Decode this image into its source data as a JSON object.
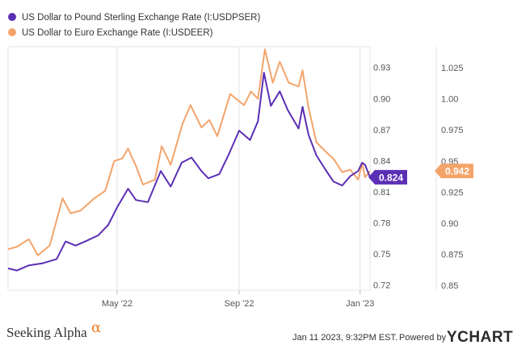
{
  "chart_data": {
    "type": "line",
    "title": "",
    "xlabel": "",
    "x_tick_labels": [
      "May '22",
      "Sep '22",
      "Jan '23"
    ],
    "x_tick_dates": [
      "2022-05-01",
      "2022-09-01",
      "2023-01-01"
    ],
    "x_range": [
      "2022-01-11",
      "2023-01-11"
    ],
    "y_left": {
      "ticks": [
        0.72,
        0.75,
        0.78,
        0.81,
        0.84,
        0.87,
        0.9,
        0.93
      ],
      "tick_labels": [
        "0.72",
        "0.75",
        "0.78",
        "0.81",
        "0.84",
        "0.87",
        "0.90",
        "0.93"
      ],
      "range": [
        0.715,
        0.95
      ]
    },
    "y_right": {
      "ticks": [
        0.85,
        0.875,
        0.9,
        0.925,
        0.95,
        0.975,
        1.0,
        1.025
      ],
      "tick_labels": [
        "0.85",
        "0.875",
        "0.90",
        "0.925",
        "0.95",
        "0.975",
        "1.00",
        "1.025"
      ],
      "range": [
        0.846,
        1.042
      ]
    },
    "grid": "vertical-only",
    "legend_position": "top-left",
    "series": [
      {
        "name": "US Dollar to Pound Sterling Exchange Rate (I:USDPSER)",
        "axis": "left",
        "color": "#5b2fb5",
        "last_value": 0.824,
        "last_label": "0.824",
        "points": [
          [
            "2022-01-11",
            0.736
          ],
          [
            "2022-01-20",
            0.734
          ],
          [
            "2022-02-01",
            0.739
          ],
          [
            "2022-02-15",
            0.741
          ],
          [
            "2022-03-01",
            0.745
          ],
          [
            "2022-03-10",
            0.762
          ],
          [
            "2022-03-20",
            0.758
          ],
          [
            "2022-04-01",
            0.763
          ],
          [
            "2022-04-12",
            0.768
          ],
          [
            "2022-04-22",
            0.778
          ],
          [
            "2022-05-01",
            0.795
          ],
          [
            "2022-05-12",
            0.813
          ],
          [
            "2022-05-20",
            0.802
          ],
          [
            "2022-06-01",
            0.8
          ],
          [
            "2022-06-14",
            0.83
          ],
          [
            "2022-06-24",
            0.815
          ],
          [
            "2022-07-05",
            0.838
          ],
          [
            "2022-07-15",
            0.843
          ],
          [
            "2022-07-25",
            0.83
          ],
          [
            "2022-08-01",
            0.823
          ],
          [
            "2022-08-12",
            0.827
          ],
          [
            "2022-08-22",
            0.847
          ],
          [
            "2022-09-01",
            0.869
          ],
          [
            "2022-09-12",
            0.86
          ],
          [
            "2022-09-20",
            0.878
          ],
          [
            "2022-09-26",
            0.925
          ],
          [
            "2022-10-03",
            0.893
          ],
          [
            "2022-10-12",
            0.907
          ],
          [
            "2022-10-20",
            0.889
          ],
          [
            "2022-10-31",
            0.871
          ],
          [
            "2022-11-04",
            0.892
          ],
          [
            "2022-11-10",
            0.865
          ],
          [
            "2022-11-18",
            0.845
          ],
          [
            "2022-11-28",
            0.83
          ],
          [
            "2022-12-05",
            0.82
          ],
          [
            "2022-12-14",
            0.816
          ],
          [
            "2022-12-22",
            0.825
          ],
          [
            "2022-12-30",
            0.83
          ],
          [
            "2023-01-03",
            0.838
          ],
          [
            "2023-01-06",
            0.836
          ],
          [
            "2023-01-11",
            0.824
          ]
        ]
      },
      {
        "name": "US Dollar to Euro Exchange Rate (I:USDEER)",
        "axis": "right",
        "color": "#f4a46b",
        "last_value": 0.942,
        "last_label": "0.942",
        "points": [
          [
            "2022-01-11",
            0.879
          ],
          [
            "2022-01-20",
            0.881
          ],
          [
            "2022-02-01",
            0.887
          ],
          [
            "2022-02-10",
            0.874
          ],
          [
            "2022-02-22",
            0.882
          ],
          [
            "2022-03-07",
            0.92
          ],
          [
            "2022-03-15",
            0.908
          ],
          [
            "2022-03-25",
            0.91
          ],
          [
            "2022-04-08",
            0.92
          ],
          [
            "2022-04-19",
            0.926
          ],
          [
            "2022-04-28",
            0.95
          ],
          [
            "2022-05-06",
            0.952
          ],
          [
            "2022-05-12",
            0.96
          ],
          [
            "2022-05-20",
            0.946
          ],
          [
            "2022-05-27",
            0.931
          ],
          [
            "2022-06-08",
            0.935
          ],
          [
            "2022-06-15",
            0.962
          ],
          [
            "2022-06-24",
            0.947
          ],
          [
            "2022-07-06",
            0.98
          ],
          [
            "2022-07-14",
            0.995
          ],
          [
            "2022-07-25",
            0.977
          ],
          [
            "2022-08-02",
            0.983
          ],
          [
            "2022-08-10",
            0.97
          ],
          [
            "2022-08-23",
            1.004
          ],
          [
            "2022-09-06",
            0.995
          ],
          [
            "2022-09-13",
            1.006
          ],
          [
            "2022-09-20",
            1.0
          ],
          [
            "2022-09-27",
            1.04
          ],
          [
            "2022-10-05",
            1.013
          ],
          [
            "2022-10-12",
            1.03
          ],
          [
            "2022-10-21",
            1.013
          ],
          [
            "2022-10-31",
            1.01
          ],
          [
            "2022-11-04",
            1.023
          ],
          [
            "2022-11-10",
            0.993
          ],
          [
            "2022-11-18",
            0.965
          ],
          [
            "2022-11-28",
            0.957
          ],
          [
            "2022-12-05",
            0.952
          ],
          [
            "2022-12-14",
            0.941
          ],
          [
            "2022-12-22",
            0.943
          ],
          [
            "2022-12-30",
            0.935
          ],
          [
            "2023-01-03",
            0.948
          ],
          [
            "2023-01-06",
            0.937
          ],
          [
            "2023-01-11",
            0.942
          ]
        ]
      }
    ]
  },
  "footer": {
    "brand": "Seeking Alpha",
    "brand_mark": "α",
    "timestamp": "Jan 11 2023, 9:32PM EST.",
    "powered_by": "Powered by",
    "provider": "YCHARTS"
  },
  "colors": {
    "gbp_line": "#5b2fb5",
    "eur_line": "#f4a46b",
    "grid": "#e3e3e3",
    "brand_accent": "#f47b20"
  }
}
